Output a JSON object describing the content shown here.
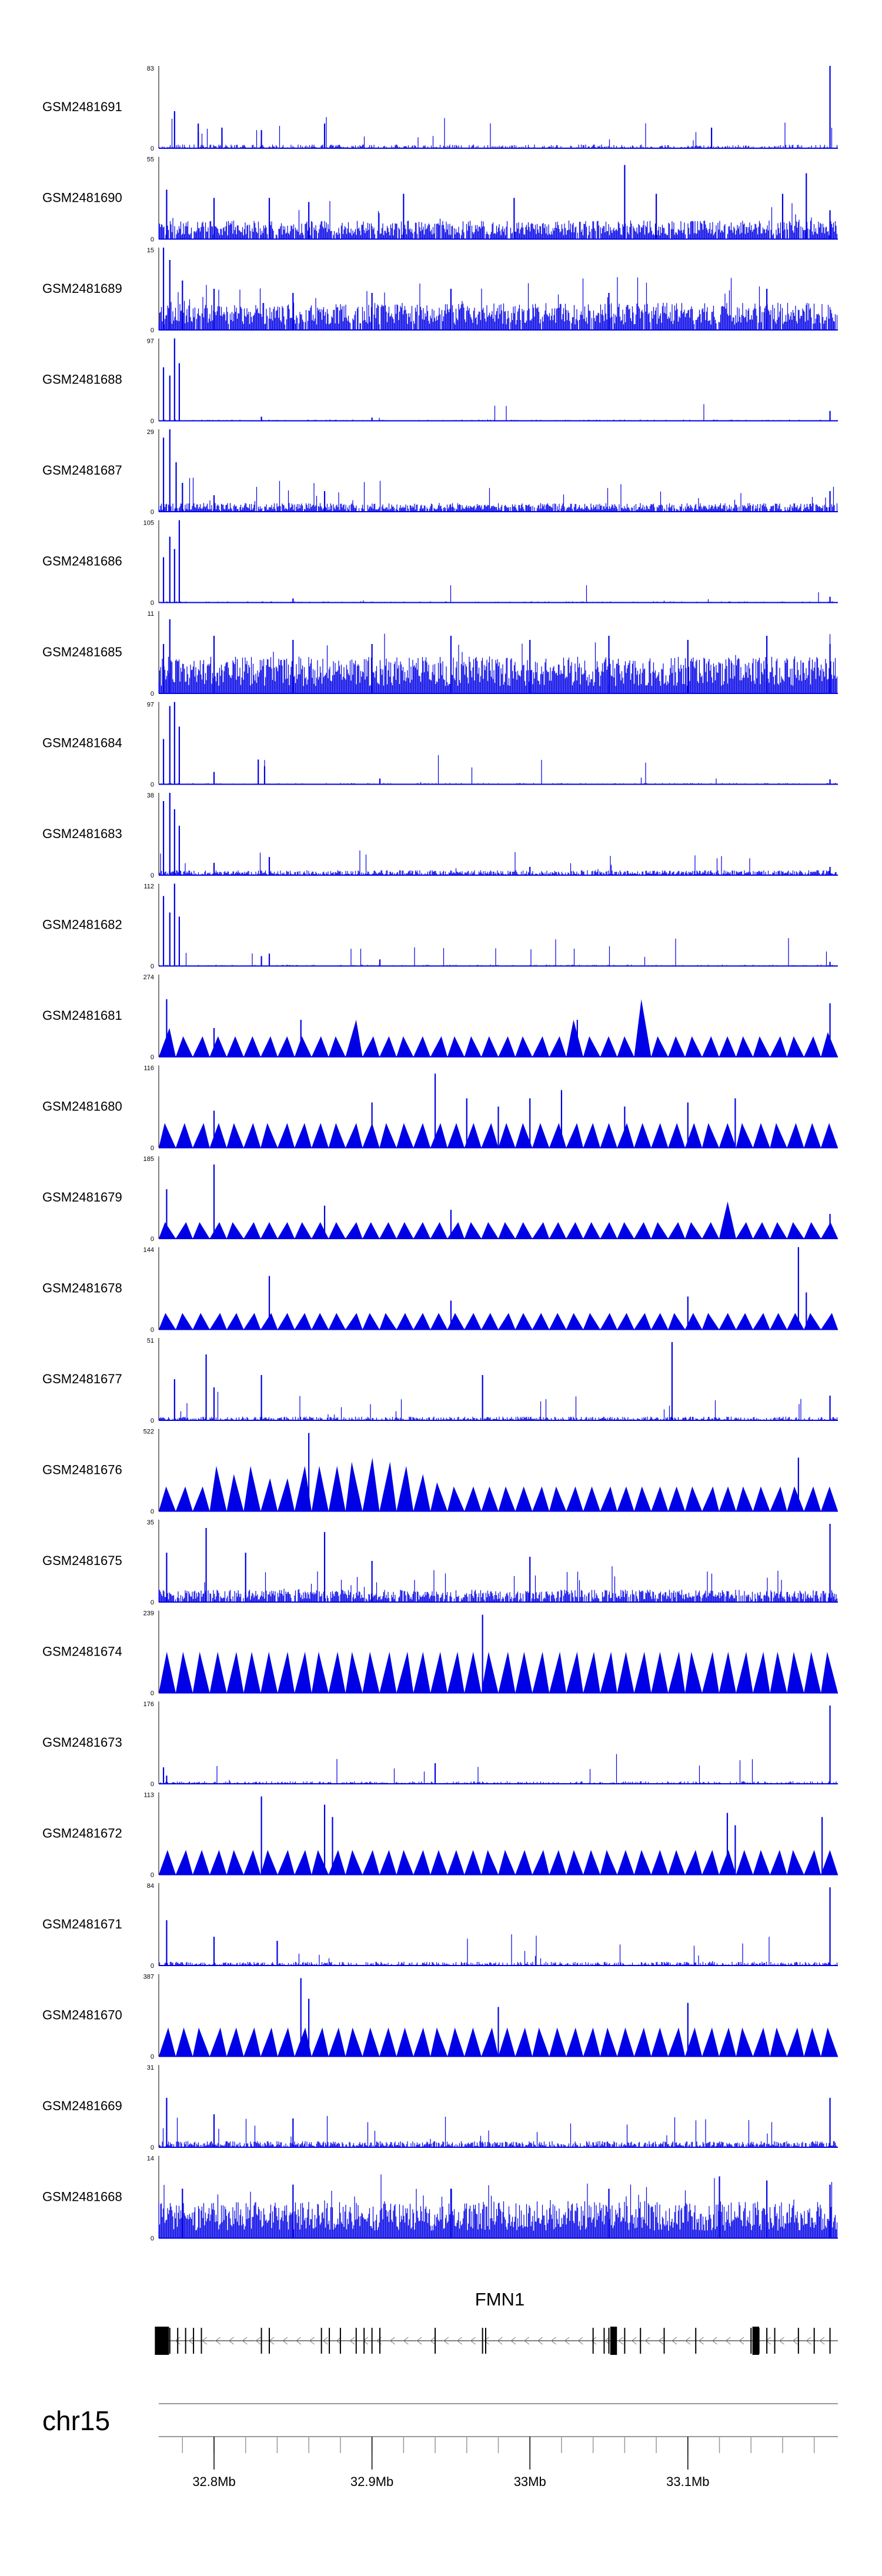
{
  "chart_data": {
    "type": "area",
    "title": "",
    "x_range_mb": [
      32.765,
      33.195
    ],
    "color": "#0000e6",
    "tracks": [
      {
        "name": "GSM2481691",
        "ymax": 83,
        "ymin": 0,
        "style": "dense",
        "density": 0.5,
        "base": 0.03,
        "peaks": [
          [
            32.775,
            0.45
          ],
          [
            32.79,
            0.2
          ],
          [
            32.79,
            0.3
          ],
          [
            32.805,
            0.25
          ],
          [
            32.83,
            0.22
          ],
          [
            32.87,
            0.3
          ],
          [
            33.115,
            0.25
          ],
          [
            33.19,
            1.0
          ]
        ]
      },
      {
        "name": "GSM2481690",
        "ymax": 55,
        "ymin": 0,
        "style": "dense",
        "density": 0.9,
        "base": 0.15,
        "peaks": [
          [
            32.77,
            0.6
          ],
          [
            32.8,
            0.5
          ],
          [
            32.835,
            0.5
          ],
          [
            32.86,
            0.45
          ],
          [
            32.92,
            0.55
          ],
          [
            32.99,
            0.5
          ],
          [
            33.06,
            0.9
          ],
          [
            33.08,
            0.55
          ],
          [
            33.16,
            0.55
          ],
          [
            33.175,
            0.8
          ],
          [
            33.19,
            0.35
          ]
        ]
      },
      {
        "name": "GSM2481689",
        "ymax": 15,
        "ymin": 0,
        "style": "dense",
        "density": 0.95,
        "base": 0.22,
        "peaks": [
          [
            32.768,
            1.0
          ],
          [
            32.772,
            0.85
          ],
          [
            32.78,
            0.6
          ],
          [
            32.8,
            0.5
          ],
          [
            32.85,
            0.45
          ],
          [
            32.9,
            0.45
          ],
          [
            32.95,
            0.5
          ],
          [
            33.05,
            0.45
          ],
          [
            33.15,
            0.5
          ]
        ]
      },
      {
        "name": "GSM2481688",
        "ymax": 97,
        "ymin": 0,
        "style": "dense",
        "density": 0.25,
        "base": 0.01,
        "peaks": [
          [
            32.768,
            0.65
          ],
          [
            32.772,
            0.55
          ],
          [
            32.775,
            1.0
          ],
          [
            32.778,
            0.7
          ],
          [
            32.83,
            0.05
          ],
          [
            32.9,
            0.04
          ],
          [
            33.19,
            0.12
          ]
        ]
      },
      {
        "name": "GSM2481687",
        "ymax": 29,
        "ymin": 0,
        "style": "dense",
        "density": 0.85,
        "base": 0.07,
        "peaks": [
          [
            32.768,
            0.9
          ],
          [
            32.772,
            1.0
          ],
          [
            32.776,
            0.6
          ],
          [
            32.78,
            0.35
          ],
          [
            32.8,
            0.2
          ],
          [
            32.87,
            0.25
          ],
          [
            33.19,
            0.25
          ]
        ]
      },
      {
        "name": "GSM2481686",
        "ymax": 105,
        "ymin": 0,
        "style": "dense",
        "density": 0.25,
        "base": 0.01,
        "peaks": [
          [
            32.768,
            0.55
          ],
          [
            32.772,
            0.8
          ],
          [
            32.775,
            0.65
          ],
          [
            32.778,
            1.0
          ],
          [
            32.85,
            0.05
          ],
          [
            33.19,
            0.07
          ]
        ]
      },
      {
        "name": "GSM2481685",
        "ymax": 11,
        "ymin": 0,
        "style": "dense",
        "density": 1.0,
        "base": 0.3,
        "peaks": [
          [
            32.768,
            0.6
          ],
          [
            32.772,
            0.9
          ],
          [
            32.8,
            0.7
          ],
          [
            32.85,
            0.65
          ],
          [
            32.9,
            0.6
          ],
          [
            32.95,
            0.7
          ],
          [
            33.0,
            0.65
          ],
          [
            33.05,
            0.7
          ],
          [
            33.1,
            0.65
          ],
          [
            33.15,
            0.7
          ],
          [
            33.19,
            0.6
          ]
        ]
      },
      {
        "name": "GSM2481684",
        "ymax": 97,
        "ymin": 0,
        "style": "dense",
        "density": 0.3,
        "base": 0.01,
        "peaks": [
          [
            32.768,
            0.55
          ],
          [
            32.772,
            0.95
          ],
          [
            32.775,
            1.0
          ],
          [
            32.778,
            0.7
          ],
          [
            32.8,
            0.15
          ],
          [
            32.828,
            0.3
          ],
          [
            32.832,
            0.22
          ],
          [
            32.905,
            0.07
          ],
          [
            33.19,
            0.06
          ]
        ]
      },
      {
        "name": "GSM2481683",
        "ymax": 38,
        "ymin": 0,
        "style": "dense",
        "density": 0.75,
        "base": 0.04,
        "peaks": [
          [
            32.768,
            0.9
          ],
          [
            32.772,
            1.0
          ],
          [
            32.775,
            0.8
          ],
          [
            32.778,
            0.6
          ],
          [
            32.8,
            0.15
          ],
          [
            32.835,
            0.22
          ],
          [
            33.0,
            0.1
          ],
          [
            33.19,
            0.1
          ]
        ]
      },
      {
        "name": "GSM2481682",
        "ymax": 112,
        "ymin": 0,
        "style": "dense",
        "density": 0.3,
        "base": 0.01,
        "peaks": [
          [
            32.768,
            0.85
          ],
          [
            32.772,
            0.65
          ],
          [
            32.775,
            1.0
          ],
          [
            32.778,
            0.6
          ],
          [
            32.83,
            0.12
          ],
          [
            32.835,
            0.15
          ],
          [
            32.905,
            0.08
          ],
          [
            33.19,
            0.05
          ]
        ]
      },
      {
        "name": "GSM2481681",
        "ymax": 274,
        "ymin": 0,
        "style": "tri",
        "tri_heights": [
          0.35,
          0.25,
          0.25,
          0.25,
          0.25,
          0.25,
          0.25,
          0.25,
          0.25,
          0.25,
          0.25,
          0.45,
          0.25,
          0.25,
          0.25,
          0.25,
          0.25,
          0.25,
          0.25,
          0.25,
          0.25,
          0.25,
          0.25,
          0.25,
          0.45,
          0.25,
          0.25,
          0.25,
          0.7,
          0.25,
          0.25,
          0.25,
          0.25,
          0.25,
          0.25,
          0.25,
          0.25,
          0.25,
          0.25,
          0.3
        ],
        "peaks": [
          [
            32.77,
            0.7
          ],
          [
            32.8,
            0.35
          ],
          [
            32.855,
            0.45
          ],
          [
            33.03,
            0.45
          ],
          [
            33.19,
            0.65
          ]
        ]
      },
      {
        "name": "GSM2481680",
        "ymax": 116,
        "ymin": 0,
        "style": "tri",
        "tri_heights": [
          0.3,
          0.3,
          0.3,
          0.3,
          0.3,
          0.3,
          0.3,
          0.3,
          0.3,
          0.3,
          0.3,
          0.3,
          0.3,
          0.3,
          0.3,
          0.3,
          0.3,
          0.3,
          0.3,
          0.3,
          0.3,
          0.3,
          0.3,
          0.3,
          0.3,
          0.3,
          0.3,
          0.3,
          0.3,
          0.3,
          0.3,
          0.3,
          0.3,
          0.3,
          0.3,
          0.3,
          0.3,
          0.3,
          0.3,
          0.3
        ],
        "peaks": [
          [
            32.8,
            0.45
          ],
          [
            32.9,
            0.55
          ],
          [
            32.94,
            0.9
          ],
          [
            32.96,
            0.6
          ],
          [
            32.98,
            0.5
          ],
          [
            33.0,
            0.6
          ],
          [
            33.02,
            0.7
          ],
          [
            33.06,
            0.5
          ],
          [
            33.1,
            0.55
          ],
          [
            33.13,
            0.6
          ]
        ]
      },
      {
        "name": "GSM2481679",
        "ymax": 185,
        "ymin": 0,
        "style": "tri",
        "tri_heights": [
          0.2,
          0.2,
          0.2,
          0.2,
          0.2,
          0.2,
          0.2,
          0.2,
          0.2,
          0.2,
          0.2,
          0.2,
          0.2,
          0.2,
          0.2,
          0.2,
          0.2,
          0.2,
          0.2,
          0.2,
          0.2,
          0.2,
          0.2,
          0.2,
          0.2,
          0.2,
          0.2,
          0.2,
          0.2,
          0.2,
          0.2,
          0.2,
          0.2,
          0.45,
          0.2,
          0.2,
          0.2,
          0.2,
          0.2,
          0.2
        ],
        "peaks": [
          [
            32.77,
            0.6
          ],
          [
            32.8,
            0.9
          ],
          [
            32.87,
            0.4
          ],
          [
            32.95,
            0.35
          ],
          [
            33.19,
            0.3
          ]
        ]
      },
      {
        "name": "GSM2481678",
        "ymax": 144,
        "ymin": 0,
        "style": "tri",
        "tri_heights": [
          0.2,
          0.2,
          0.2,
          0.2,
          0.2,
          0.2,
          0.2,
          0.2,
          0.2,
          0.2,
          0.2,
          0.2,
          0.2,
          0.2,
          0.2,
          0.2,
          0.2,
          0.2,
          0.2,
          0.2,
          0.2,
          0.2,
          0.2,
          0.2,
          0.2,
          0.2,
          0.2,
          0.2,
          0.2,
          0.2,
          0.2,
          0.2,
          0.2,
          0.2,
          0.2,
          0.2,
          0.2,
          0.2,
          0.2,
          0.2
        ],
        "peaks": [
          [
            32.835,
            0.65
          ],
          [
            33.17,
            1.0
          ],
          [
            33.175,
            0.45
          ],
          [
            33.1,
            0.4
          ],
          [
            32.95,
            0.35
          ]
        ]
      },
      {
        "name": "GSM2481677",
        "ymax": 51,
        "ymin": 0,
        "style": "dense",
        "density": 0.6,
        "base": 0.03,
        "peaks": [
          [
            32.775,
            0.5
          ],
          [
            32.795,
            0.8
          ],
          [
            32.8,
            0.4
          ],
          [
            32.83,
            0.55
          ],
          [
            32.97,
            0.55
          ],
          [
            33.09,
            0.95
          ],
          [
            33.19,
            0.3
          ]
        ]
      },
      {
        "name": "GSM2481676",
        "ymax": 522,
        "ymin": 0,
        "style": "tri",
        "tri_heights": [
          0.3,
          0.3,
          0.3,
          0.55,
          0.45,
          0.55,
          0.4,
          0.4,
          0.55,
          0.55,
          0.55,
          0.6,
          0.65,
          0.6,
          0.55,
          0.45,
          0.35,
          0.3,
          0.3,
          0.3,
          0.3,
          0.3,
          0.3,
          0.3,
          0.3,
          0.3,
          0.3,
          0.3,
          0.3,
          0.3,
          0.3,
          0.3,
          0.3,
          0.3,
          0.3,
          0.3,
          0.3,
          0.3,
          0.3,
          0.3
        ],
        "peaks": [
          [
            32.86,
            0.95
          ],
          [
            33.17,
            0.65
          ]
        ]
      },
      {
        "name": "GSM2481675",
        "ymax": 35,
        "ymin": 0,
        "style": "dense",
        "density": 0.85,
        "base": 0.1,
        "peaks": [
          [
            32.77,
            0.6
          ],
          [
            32.795,
            0.9
          ],
          [
            32.82,
            0.6
          ],
          [
            32.87,
            0.85
          ],
          [
            32.9,
            0.5
          ],
          [
            33.0,
            0.55
          ],
          [
            33.19,
            0.95
          ]
        ]
      },
      {
        "name": "GSM2481674",
        "ymax": 239,
        "ymin": 0,
        "style": "tri",
        "tri_heights": [
          0.5,
          0.5,
          0.5,
          0.5,
          0.5,
          0.5,
          0.5,
          0.5,
          0.5,
          0.5,
          0.5,
          0.5,
          0.5,
          0.5,
          0.5,
          0.5,
          0.5,
          0.5,
          0.5,
          0.5,
          0.5,
          0.5,
          0.5,
          0.5,
          0.5,
          0.5,
          0.5,
          0.5,
          0.5,
          0.5,
          0.5,
          0.5,
          0.5,
          0.5,
          0.5,
          0.5,
          0.5,
          0.5,
          0.5,
          0.5
        ],
        "peaks": [
          [
            32.97,
            0.95
          ]
        ]
      },
      {
        "name": "GSM2481673",
        "ymax": 176,
        "ymin": 0,
        "style": "dense",
        "density": 0.45,
        "base": 0.02,
        "peaks": [
          [
            32.768,
            0.2
          ],
          [
            32.77,
            0.1
          ],
          [
            32.94,
            0.25
          ],
          [
            33.19,
            0.95
          ]
        ]
      },
      {
        "name": "GSM2481672",
        "ymax": 113,
        "ymin": 0,
        "style": "tri",
        "tri_heights": [
          0.3,
          0.3,
          0.3,
          0.3,
          0.3,
          0.3,
          0.3,
          0.3,
          0.3,
          0.3,
          0.3,
          0.3,
          0.3,
          0.3,
          0.3,
          0.3,
          0.3,
          0.3,
          0.3,
          0.3,
          0.3,
          0.3,
          0.3,
          0.3,
          0.3,
          0.3,
          0.3,
          0.3,
          0.3,
          0.3,
          0.3,
          0.3,
          0.3,
          0.3,
          0.3,
          0.3,
          0.3,
          0.3,
          0.3,
          0.3
        ],
        "peaks": [
          [
            32.83,
            0.95
          ],
          [
            32.87,
            0.85
          ],
          [
            32.875,
            0.7
          ],
          [
            33.125,
            0.75
          ],
          [
            33.13,
            0.6
          ],
          [
            33.185,
            0.7
          ]
        ]
      },
      {
        "name": "GSM2481671",
        "ymax": 84,
        "ymin": 0,
        "style": "dense",
        "density": 0.55,
        "base": 0.03,
        "peaks": [
          [
            32.77,
            0.55
          ],
          [
            32.8,
            0.35
          ],
          [
            32.84,
            0.3
          ],
          [
            33.19,
            0.95
          ]
        ]
      },
      {
        "name": "GSM2481670",
        "ymax": 387,
        "ymin": 0,
        "style": "tri",
        "tri_heights": [
          0.35,
          0.35,
          0.35,
          0.35,
          0.35,
          0.35,
          0.35,
          0.35,
          0.35,
          0.35,
          0.35,
          0.35,
          0.35,
          0.35,
          0.35,
          0.35,
          0.35,
          0.35,
          0.35,
          0.35,
          0.35,
          0.35,
          0.35,
          0.35,
          0.35,
          0.35,
          0.35,
          0.35,
          0.35,
          0.35,
          0.35,
          0.35,
          0.35,
          0.35,
          0.35,
          0.35,
          0.35,
          0.35,
          0.35,
          0.35
        ],
        "peaks": [
          [
            32.855,
            0.95
          ],
          [
            32.86,
            0.7
          ],
          [
            33.1,
            0.65
          ],
          [
            32.98,
            0.6
          ]
        ]
      },
      {
        "name": "GSM2481669",
        "ymax": 31,
        "ymin": 0,
        "style": "dense",
        "density": 0.75,
        "base": 0.05,
        "peaks": [
          [
            32.77,
            0.6
          ],
          [
            32.8,
            0.4
          ],
          [
            32.85,
            0.35
          ],
          [
            33.19,
            0.6
          ]
        ]
      },
      {
        "name": "GSM2481668",
        "ymax": 14,
        "ymin": 0,
        "style": "dense",
        "density": 1.0,
        "base": 0.3,
        "peaks": [
          [
            32.78,
            0.6
          ],
          [
            32.85,
            0.65
          ],
          [
            32.95,
            0.6
          ],
          [
            33.05,
            0.6
          ],
          [
            33.12,
            0.75
          ],
          [
            33.15,
            0.7
          ],
          [
            33.19,
            0.65
          ]
        ]
      }
    ],
    "gene": {
      "name": "FMN1",
      "start_mb": 32.765,
      "end_mb": 33.195,
      "strand": "-",
      "exons_mb": [
        32.768,
        32.772,
        32.777,
        32.782,
        32.787,
        32.792,
        32.83,
        32.835,
        32.868,
        32.873,
        32.88,
        32.89,
        32.895,
        32.9,
        32.905,
        32.94,
        32.97,
        32.972,
        33.04,
        33.047,
        33.05,
        33.06,
        33.07,
        33.085,
        33.105,
        33.14,
        33.145,
        33.15,
        33.155,
        33.17,
        33.18,
        33.19
      ],
      "thick_exons_mb": [
        32.767,
        33.052,
        33.054,
        33.142,
        33.144
      ]
    },
    "axis": {
      "chromosome": "chr15",
      "ticks": [
        {
          "pos_mb": 32.8,
          "label": "32.8Mb"
        },
        {
          "pos_mb": 32.9,
          "label": "32.9Mb"
        },
        {
          "pos_mb": 33.0,
          "label": "33Mb"
        },
        {
          "pos_mb": 33.1,
          "label": "33.1Mb"
        }
      ],
      "minor_tick_step_mb": 0.02
    }
  }
}
